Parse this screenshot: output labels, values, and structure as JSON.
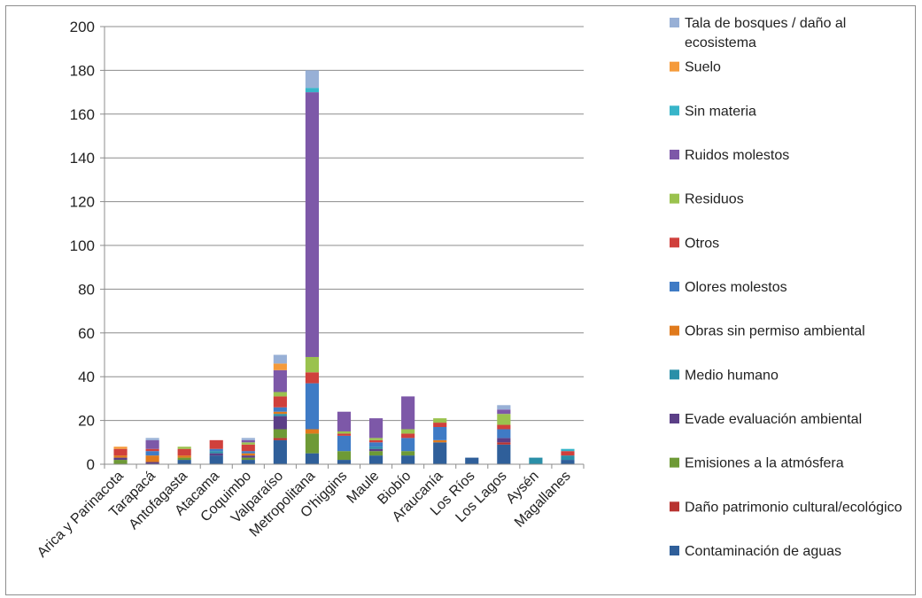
{
  "chart_data": {
    "type": "bar",
    "stacked": true,
    "ylim": [
      0,
      200
    ],
    "yticks": [
      0,
      20,
      40,
      60,
      80,
      100,
      120,
      140,
      160,
      180,
      200
    ],
    "grid": true,
    "legend_position": "right",
    "categories": [
      "Arica y Parinacota",
      "Tarapacá",
      "Antofagasta",
      "Atacama",
      "Coquimbo",
      "Valparaíso",
      "Metropolitana",
      "O'higgins",
      "Maule",
      "Biobío",
      "Araucanía",
      "Los Ríos",
      "Los Lagos",
      "Aysén",
      "Magallanes"
    ],
    "series": [
      {
        "name": "Contaminación de aguas",
        "color": "#2f5f9a",
        "values": [
          0,
          0,
          2,
          4,
          2,
          11,
          5,
          2,
          4,
          4,
          10,
          3,
          9,
          0,
          2
        ]
      },
      {
        "name": "Daño patrimonio cultural/ecológico",
        "color": "#b83330",
        "values": [
          0,
          0,
          0,
          0,
          0,
          1,
          0,
          0,
          0,
          0,
          0,
          0,
          1,
          0,
          0
        ]
      },
      {
        "name": "Emisiones a la atmósfera",
        "color": "#6e9a36",
        "values": [
          2,
          0,
          1,
          0,
          1,
          4,
          9,
          4,
          2,
          2,
          0,
          0,
          0,
          0,
          0
        ]
      },
      {
        "name": "Evade evaluación ambiental",
        "color": "#5b3f87",
        "values": [
          1,
          1,
          0,
          1,
          1,
          6,
          0,
          0,
          1,
          0,
          0,
          0,
          2,
          0,
          0
        ]
      },
      {
        "name": "Medio humano",
        "color": "#2a8fa8",
        "values": [
          0,
          0,
          0,
          1,
          0,
          1,
          0,
          0,
          1,
          0,
          0,
          0,
          0,
          3,
          2
        ]
      },
      {
        "name": "Obras sin permiso ambiental",
        "color": "#e07a1c",
        "values": [
          1,
          3,
          1,
          0,
          1,
          1,
          2,
          0,
          0,
          0,
          1,
          0,
          0,
          0,
          0
        ]
      },
      {
        "name": "Olores molestos",
        "color": "#3f7bc5",
        "values": [
          0,
          2,
          0,
          1,
          1,
          2,
          21,
          7,
          2,
          6,
          6,
          0,
          4,
          0,
          0
        ]
      },
      {
        "name": "Otros",
        "color": "#d0403c",
        "values": [
          3,
          1,
          3,
          4,
          3,
          5,
          5,
          1,
          1,
          2,
          2,
          0,
          2,
          0,
          2
        ]
      },
      {
        "name": "Residuos",
        "color": "#9ac24e",
        "values": [
          0,
          0,
          1,
          0,
          1,
          2,
          7,
          1,
          1,
          2,
          2,
          0,
          5,
          0,
          0
        ]
      },
      {
        "name": "Ruidos molestos",
        "color": "#7d58a8",
        "values": [
          0,
          4,
          0,
          0,
          1,
          10,
          121,
          9,
          9,
          15,
          0,
          0,
          2,
          0,
          0
        ]
      },
      {
        "name": "Sin materia",
        "color": "#37b5c9",
        "values": [
          0,
          0,
          0,
          0,
          0,
          0,
          2,
          0,
          0,
          0,
          0,
          0,
          0,
          0,
          1
        ]
      },
      {
        "name": "Suelo",
        "color": "#f59a3a",
        "values": [
          1,
          0,
          0,
          0,
          0,
          3,
          0,
          0,
          0,
          0,
          0,
          0,
          0,
          0,
          0
        ]
      },
      {
        "name": "Tala de bosques / daño al ecosistema",
        "color": "#98b0d6",
        "values": [
          0,
          1,
          0,
          0,
          1,
          4,
          8,
          0,
          0,
          0,
          0,
          0,
          2,
          0,
          0
        ]
      }
    ]
  }
}
